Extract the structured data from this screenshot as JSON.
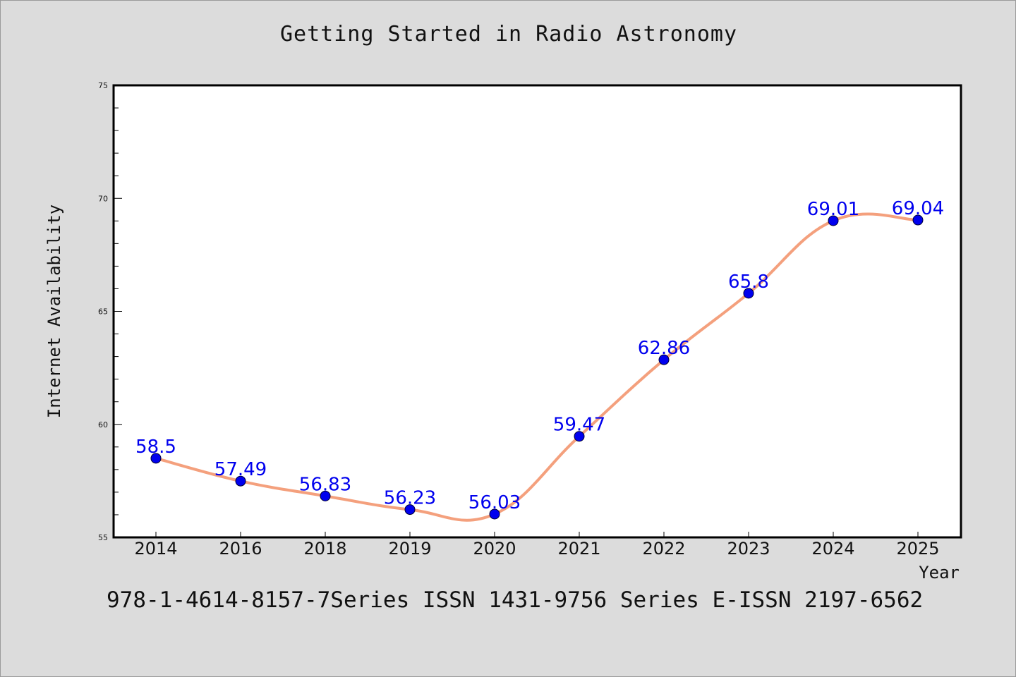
{
  "colors": {
    "background": "#dcdcdc",
    "plot_background": "#ffffff",
    "line": "#f4a07d",
    "marker": "#0000ee",
    "data_label": "#0000ee"
  },
  "footer": {
    "text": "978-1-4614-8157-7Series ISSN 1431-9756 Series E-ISSN 2197-6562"
  },
  "chart_data": {
    "type": "line",
    "title": "Getting Started in Radio Astronomy",
    "xlabel": "Year",
    "ylabel": "Internet Availability",
    "categories": [
      "2014",
      "2016",
      "2018",
      "2019",
      "2020",
      "2021",
      "2022",
      "2023",
      "2024",
      "2025"
    ],
    "series": [
      {
        "values": [
          58.5,
          57.49,
          56.83,
          56.23,
          56.03,
          59.47,
          62.86,
          65.8,
          69.01,
          69.04
        ],
        "labels": [
          "58.5",
          "57.49",
          "56.83",
          "56.23",
          "56.03",
          "59.47",
          "62.86",
          "65.8",
          "69.01",
          "69.04"
        ]
      }
    ],
    "ylim": [
      55,
      75
    ],
    "yticks": [
      "55",
      "60",
      "65",
      "70",
      "75"
    ],
    "grid": false,
    "smooth": true
  }
}
